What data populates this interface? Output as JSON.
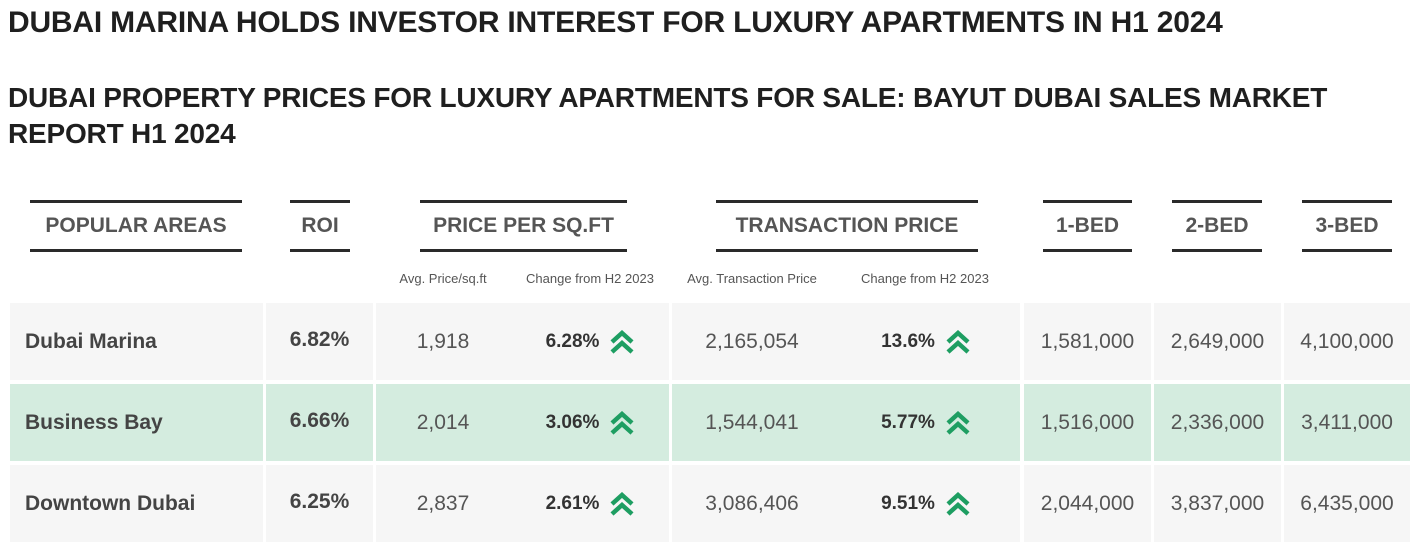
{
  "title": "DUBAI MARINA HOLDS INVESTOR INTEREST FOR LUXURY APARTMENTS IN H1 2024",
  "subtitle": "DUBAI PROPERTY PRICES FOR LUXURY APARTMENTS FOR SALE: BAYUT DUBAI SALES MARKET REPORT H1 2024",
  "table": {
    "headers": {
      "areas": "POPULAR AREAS",
      "roi": "ROI",
      "price_per_sqft": "PRICE PER SQ.FT",
      "transaction_price": "TRANSACTION PRICE",
      "bed1": "1-BED",
      "bed2": "2-BED",
      "bed3": "3-BED"
    },
    "subheaders": {
      "avg_price_sqft": "Avg. Price/sq.ft",
      "change_sqft": "Change from H2 2023",
      "avg_transaction": "Avg. Transaction Price",
      "change_transaction": "Change from H2 2023"
    },
    "trend_icon": "double-chevron-up-icon",
    "trend_color": "#1e9e62",
    "rows": [
      {
        "area": "Dubai Marina",
        "roi": "6.82%",
        "avg_price_sqft": "1,918",
        "change_sqft": "6.28%",
        "avg_transaction": "2,165,054",
        "change_transaction": "13.6%",
        "bed1": "1,581,000",
        "bed2": "2,649,000",
        "bed3": "4,100,000"
      },
      {
        "area": "Business Bay",
        "roi": "6.66%",
        "avg_price_sqft": "2,014",
        "change_sqft": "3.06%",
        "avg_transaction": "1,544,041",
        "change_transaction": "5.77%",
        "bed1": "1,516,000",
        "bed2": "2,336,000",
        "bed3": "3,411,000"
      },
      {
        "area": "Downtown Dubai",
        "roi": "6.25%",
        "avg_price_sqft": "2,837",
        "change_sqft": "2.61%",
        "avg_transaction": "3,086,406",
        "change_transaction": "9.51%",
        "bed1": "2,044,000",
        "bed2": "3,837,000",
        "bed3": "6,435,000"
      }
    ]
  }
}
